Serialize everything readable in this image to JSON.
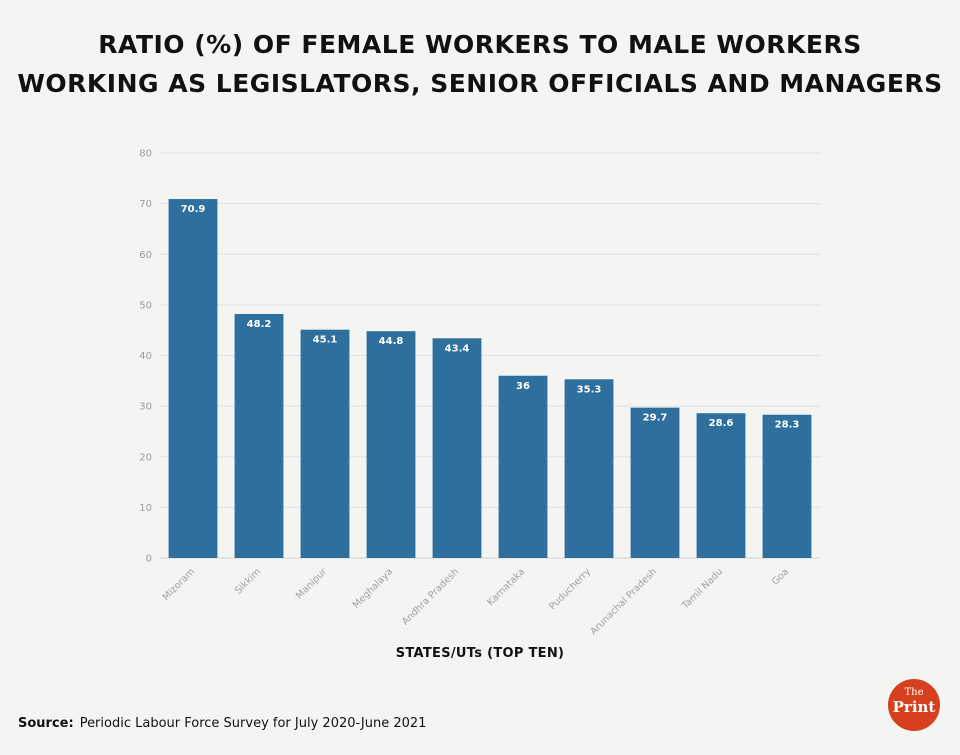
{
  "chart_data": {
    "type": "bar",
    "title": "RATIO (%) OF FEMALE WORKERS TO MALE WORKERS WORKING AS LEGISLATORS, SENIOR OFFICIALS AND MANAGERS",
    "title_lines": [
      "RATIO (%) OF FEMALE WORKERS TO MALE WORKERS",
      "WORKING AS LEGISLATORS, SENIOR OFFICIALS AND MANAGERS"
    ],
    "categories": [
      "Mizoram",
      "Sikkim",
      "Manipur",
      "Meghalaya",
      "Andhra Pradesh",
      "Karnataka",
      "Puducherry",
      "Arunachal Pradesh",
      "Tamil Nadu",
      "Goa"
    ],
    "values": [
      70.9,
      48.2,
      45.1,
      44.8,
      43.4,
      36,
      35.3,
      29.7,
      28.6,
      28.3
    ],
    "value_labels": [
      "70.9",
      "48.2",
      "45.1",
      "44.8",
      "43.4",
      "36",
      "35.3",
      "29.7",
      "28.6",
      "28.3"
    ],
    "xlabel": "STATES/UTs (TOP TEN)",
    "ylabel": "",
    "ylim": [
      0,
      80
    ],
    "yticks": [
      0,
      10,
      20,
      30,
      40,
      50,
      60,
      70,
      80
    ],
    "grid": true,
    "bar_color": "#2e6f9e",
    "legend": "none"
  },
  "source": {
    "label": "Source:",
    "text": "Periodic Labour Force Survey for July 2020-June 2021"
  },
  "logo": {
    "line1": "The",
    "line2": "Print",
    "color": "#d6401f"
  }
}
